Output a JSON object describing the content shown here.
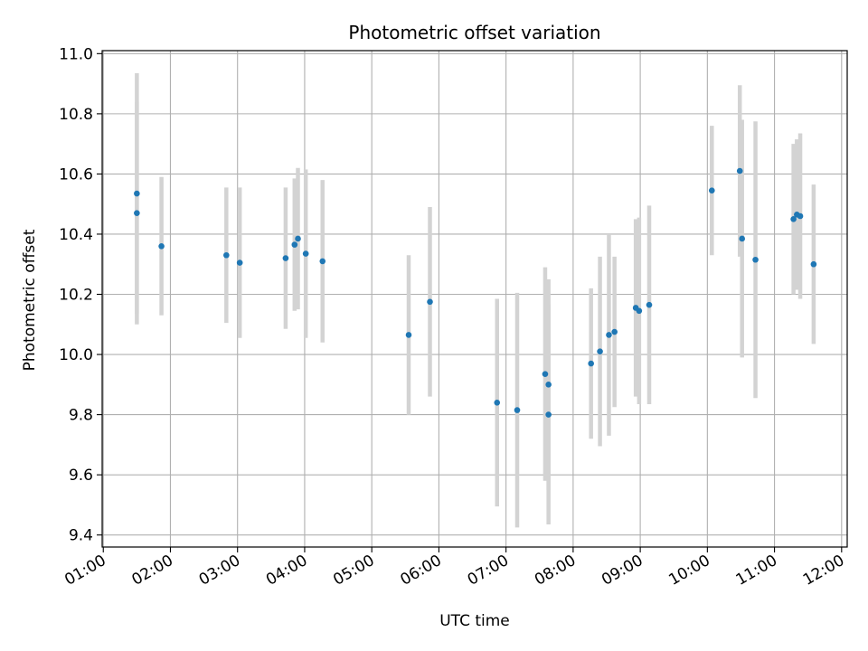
{
  "chart_data": {
    "type": "scatter",
    "title": "Photometric offset variation",
    "xlabel": "UTC time",
    "ylabel": "Photometric offset",
    "x_ticks": [
      "01:00",
      "02:00",
      "03:00",
      "04:00",
      "05:00",
      "06:00",
      "07:00",
      "08:00",
      "09:00",
      "10:00",
      "11:00",
      "12:00"
    ],
    "y_ticks": [
      "9.4",
      "9.6",
      "9.8",
      "10.0",
      "10.2",
      "10.4",
      "10.6",
      "10.8",
      "11.0"
    ],
    "xlim": [
      "00:59",
      "12:05"
    ],
    "ylim": [
      9.36,
      11.01
    ],
    "grid": true,
    "colors": {
      "point": "#1f77b4",
      "errorbar": "#d3d3d3",
      "grid": "#b0b0b0"
    },
    "series": [
      {
        "points": [
          {
            "x": "01:30",
            "y": 10.535,
            "err": 0.4
          },
          {
            "x": "01:30",
            "y": 10.47,
            "err": 0.37
          },
          {
            "x": "01:52",
            "y": 10.36,
            "err": 0.23
          },
          {
            "x": "02:50",
            "y": 10.33,
            "err": 0.225
          },
          {
            "x": "03:02",
            "y": 10.305,
            "err": 0.25
          },
          {
            "x": "03:43",
            "y": 10.32,
            "err": 0.235
          },
          {
            "x": "03:51",
            "y": 10.365,
            "err": 0.22
          },
          {
            "x": "03:54",
            "y": 10.385,
            "err": 0.235
          },
          {
            "x": "04:01",
            "y": 10.335,
            "err": 0.28
          },
          {
            "x": "04:16",
            "y": 10.31,
            "err": 0.27
          },
          {
            "x": "05:33",
            "y": 10.065,
            "err": 0.265
          },
          {
            "x": "05:52",
            "y": 10.175,
            "err": 0.315
          },
          {
            "x": "06:52",
            "y": 9.84,
            "err": 0.345
          },
          {
            "x": "07:10",
            "y": 9.815,
            "err": 0.39
          },
          {
            "x": "07:35",
            "y": 9.935,
            "err": 0.355
          },
          {
            "x": "07:38",
            "y": 9.8,
            "err": 0.365
          },
          {
            "x": "07:38",
            "y": 9.9,
            "err": 0.35
          },
          {
            "x": "08:16",
            "y": 9.97,
            "err": 0.25
          },
          {
            "x": "08:24",
            "y": 10.01,
            "err": 0.315
          },
          {
            "x": "08:32",
            "y": 10.065,
            "err": 0.335
          },
          {
            "x": "08:37",
            "y": 10.075,
            "err": 0.25
          },
          {
            "x": "08:56",
            "y": 10.155,
            "err": 0.295
          },
          {
            "x": "08:59",
            "y": 10.145,
            "err": 0.31
          },
          {
            "x": "09:08",
            "y": 10.165,
            "err": 0.33
          },
          {
            "x": "10:04",
            "y": 10.545,
            "err": 0.215
          },
          {
            "x": "10:29",
            "y": 10.61,
            "err": 0.285
          },
          {
            "x": "10:31",
            "y": 10.385,
            "err": 0.395
          },
          {
            "x": "10:43",
            "y": 10.315,
            "err": 0.46
          },
          {
            "x": "11:17",
            "y": 10.45,
            "err": 0.25
          },
          {
            "x": "11:20",
            "y": 10.465,
            "err": 0.25
          },
          {
            "x": "11:23",
            "y": 10.46,
            "err": 0.275
          },
          {
            "x": "11:35",
            "y": 10.3,
            "err": 0.265
          }
        ]
      }
    ]
  }
}
